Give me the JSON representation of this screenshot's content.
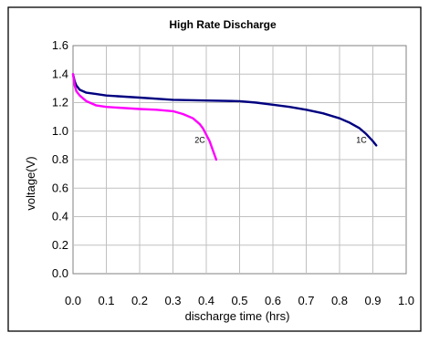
{
  "chart_data": {
    "type": "line",
    "title": "High Rate Discharge",
    "xlabel": "discharge time (hrs)",
    "ylabel": "voltage(V)",
    "xlim": [
      0.0,
      1.0
    ],
    "ylim": [
      0.0,
      1.6
    ],
    "x_ticks": [
      "0.0",
      "0.1",
      "0.2",
      "0.3",
      "0.4",
      "0.5",
      "0.6",
      "0.7",
      "0.8",
      "0.9",
      "1.0"
    ],
    "y_ticks": [
      "0.0",
      "0.2",
      "0.4",
      "0.6",
      "0.8",
      "1.0",
      "1.2",
      "1.4",
      "1.6"
    ],
    "grid": true,
    "legend": "none",
    "series": [
      {
        "name": "1C",
        "color": "#000080",
        "points": [
          [
            0.0,
            1.4
          ],
          [
            0.005,
            1.35
          ],
          [
            0.01,
            1.32
          ],
          [
            0.02,
            1.29
          ],
          [
            0.04,
            1.27
          ],
          [
            0.07,
            1.26
          ],
          [
            0.1,
            1.25
          ],
          [
            0.2,
            1.235
          ],
          [
            0.3,
            1.22
          ],
          [
            0.4,
            1.215
          ],
          [
            0.5,
            1.21
          ],
          [
            0.55,
            1.2
          ],
          [
            0.6,
            1.185
          ],
          [
            0.65,
            1.17
          ],
          [
            0.7,
            1.15
          ],
          [
            0.75,
            1.125
          ],
          [
            0.8,
            1.09
          ],
          [
            0.83,
            1.06
          ],
          [
            0.86,
            1.02
          ],
          [
            0.88,
            0.98
          ],
          [
            0.9,
            0.93
          ],
          [
            0.91,
            0.9
          ]
        ]
      },
      {
        "name": "2C",
        "color": "#ff00ff",
        "points": [
          [
            0.0,
            1.4
          ],
          [
            0.005,
            1.32
          ],
          [
            0.01,
            1.28
          ],
          [
            0.02,
            1.25
          ],
          [
            0.04,
            1.21
          ],
          [
            0.07,
            1.18
          ],
          [
            0.1,
            1.17
          ],
          [
            0.2,
            1.155
          ],
          [
            0.25,
            1.15
          ],
          [
            0.3,
            1.14
          ],
          [
            0.33,
            1.12
          ],
          [
            0.36,
            1.09
          ],
          [
            0.38,
            1.05
          ],
          [
            0.39,
            1.02
          ],
          [
            0.41,
            0.93
          ],
          [
            0.43,
            0.8
          ]
        ]
      }
    ],
    "annotations": [
      {
        "text": "2C",
        "x": 0.365,
        "y": 0.9
      },
      {
        "text": "1C",
        "x": 0.85,
        "y": 0.9
      }
    ]
  }
}
